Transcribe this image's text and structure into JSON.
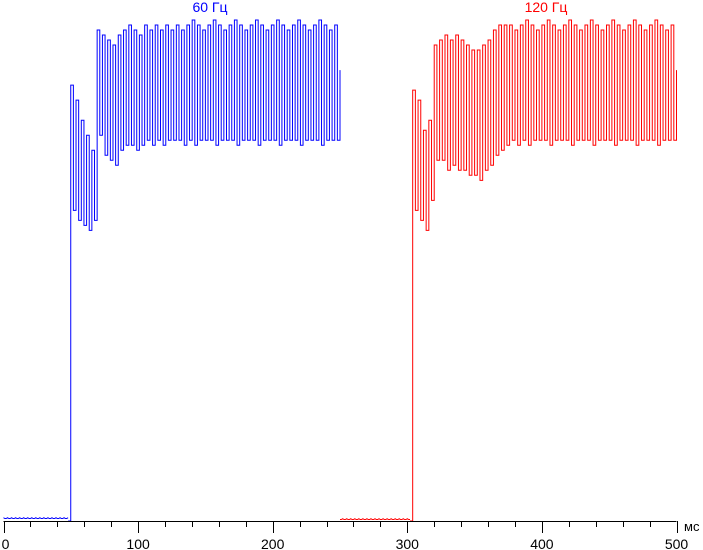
{
  "chart_data": {
    "type": "line",
    "xlabel": "мс",
    "xlim": [
      0,
      500
    ],
    "ylim": [
      0,
      1
    ],
    "x_ticks": [
      "0",
      "100",
      "200",
      "300",
      "400",
      "500"
    ],
    "x_minor_step": 20,
    "grid": false,
    "series": [
      {
        "name": "60 Гц",
        "color": "#0000ff",
        "baseline": {
          "t_start": 0,
          "t_end": 48,
          "value": 0.005
        },
        "t_start": 48,
        "t_end": 250,
        "values": [
          0.0,
          0.87,
          0.62,
          0.84,
          0.6,
          0.8,
          0.59,
          0.77,
          0.58,
          0.74,
          0.6,
          0.98,
          0.77,
          0.97,
          0.73,
          0.96,
          0.72,
          0.95,
          0.71,
          0.97,
          0.74,
          0.98,
          0.75,
          0.99,
          0.75,
          0.98,
          0.74,
          0.97,
          0.75,
          0.99,
          0.76,
          0.98,
          0.75,
          0.99,
          0.76,
          0.98,
          0.75,
          0.99,
          0.76,
          0.98,
          0.76,
          0.99,
          0.76,
          0.98,
          0.75,
          0.99,
          0.76,
          1.0,
          0.75,
          0.99,
          0.76,
          0.98,
          0.76,
          0.99,
          0.76,
          1.0,
          0.75,
          0.99,
          0.76,
          0.98,
          0.76,
          0.99,
          0.76,
          1.0,
          0.75,
          0.99,
          0.76,
          0.98,
          0.76,
          0.99,
          0.76,
          1.0,
          0.75,
          0.99,
          0.76,
          0.98,
          0.76,
          0.99,
          0.76,
          1.0,
          0.75,
          0.99,
          0.76,
          0.98,
          0.76,
          0.99,
          0.76,
          1.0,
          0.75,
          0.99,
          0.76,
          0.98,
          0.76,
          0.99,
          0.76,
          1.0,
          0.75,
          0.99,
          0.76,
          0.98,
          0.76,
          0.99,
          0.76,
          0.9
        ]
      },
      {
        "name": "120 Гц",
        "color": "#ff0000",
        "baseline": {
          "t_start": 250,
          "t_end": 302,
          "value": 0.003
        },
        "t_start": 302,
        "t_end": 500,
        "values": [
          0.0,
          0.86,
          0.62,
          0.84,
          0.6,
          0.78,
          0.58,
          0.8,
          0.64,
          0.95,
          0.72,
          0.96,
          0.72,
          0.97,
          0.7,
          0.96,
          0.71,
          0.97,
          0.7,
          0.96,
          0.7,
          0.95,
          0.69,
          0.94,
          0.69,
          0.94,
          0.68,
          0.95,
          0.7,
          0.96,
          0.71,
          0.98,
          0.73,
          0.99,
          0.74,
          0.99,
          0.75,
          0.99,
          0.76,
          0.98,
          0.75,
          0.99,
          0.76,
          1.0,
          0.75,
          0.99,
          0.76,
          0.98,
          0.76,
          0.99,
          0.76,
          1.0,
          0.75,
          0.99,
          0.76,
          0.98,
          0.76,
          0.99,
          0.76,
          1.0,
          0.75,
          0.99,
          0.76,
          0.98,
          0.76,
          0.99,
          0.76,
          1.0,
          0.75,
          0.99,
          0.76,
          0.98,
          0.76,
          0.99,
          0.76,
          1.0,
          0.75,
          0.99,
          0.76,
          0.98,
          0.76,
          0.99,
          0.76,
          1.0,
          0.75,
          0.99,
          0.76,
          0.98,
          0.76,
          0.99,
          0.76,
          1.0,
          0.75,
          0.99,
          0.76,
          0.98,
          0.76,
          0.99,
          0.76,
          0.9
        ]
      }
    ]
  }
}
